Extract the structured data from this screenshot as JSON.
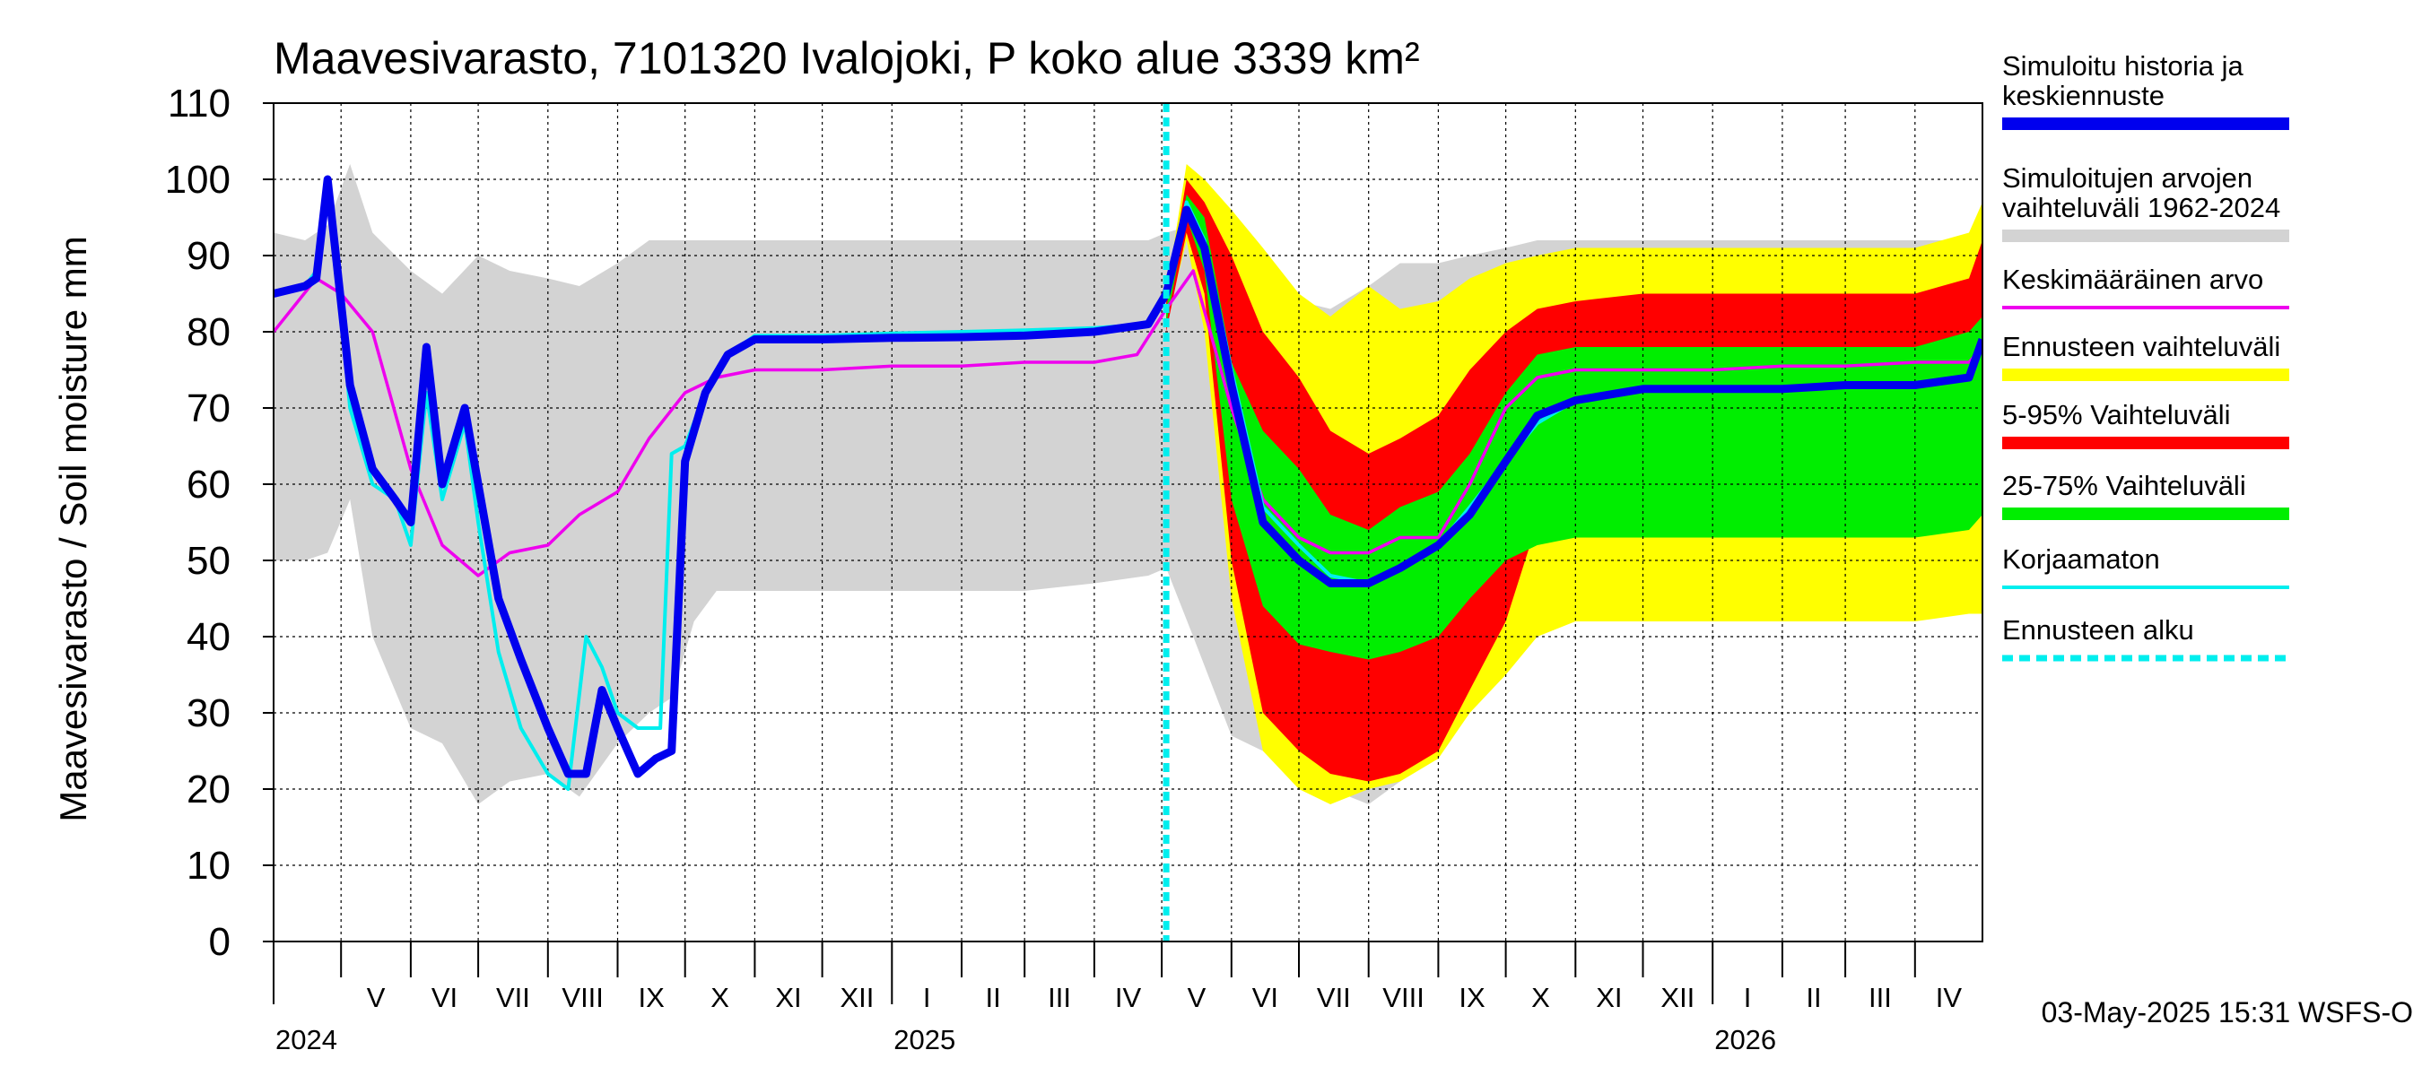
{
  "chart_data": {
    "type": "area",
    "title": "Maavesivarasto, 7101320 Ivalojoki, P koko alue 3339 km²",
    "ylabel": "Maavesivarasto / Soil moisture   mm",
    "ylim": [
      0,
      110
    ],
    "yticks": [
      0,
      10,
      20,
      30,
      40,
      50,
      60,
      70,
      80,
      90,
      100,
      110
    ],
    "xlim": [
      "2024-04-01",
      "2026-05-01"
    ],
    "grid": true,
    "legend_position": "right",
    "forecast_start": "2025-05-03",
    "month_labels": [
      {
        "label": "V",
        "date": "2024-05-01"
      },
      {
        "label": "VI",
        "date": "2024-06-01"
      },
      {
        "label": "VII",
        "date": "2024-07-01"
      },
      {
        "label": "VIII",
        "date": "2024-08-01"
      },
      {
        "label": "IX",
        "date": "2024-09-01"
      },
      {
        "label": "X",
        "date": "2024-10-01"
      },
      {
        "label": "XI",
        "date": "2024-11-01"
      },
      {
        "label": "XII",
        "date": "2024-12-01"
      },
      {
        "label": "I",
        "date": "2025-01-01"
      },
      {
        "label": "II",
        "date": "2025-02-01"
      },
      {
        "label": "III",
        "date": "2025-03-01"
      },
      {
        "label": "IV",
        "date": "2025-04-01"
      },
      {
        "label": "V",
        "date": "2025-05-01"
      },
      {
        "label": "VI",
        "date": "2025-06-01"
      },
      {
        "label": "VII",
        "date": "2025-07-01"
      },
      {
        "label": "VIII",
        "date": "2025-08-01"
      },
      {
        "label": "IX",
        "date": "2025-09-01"
      },
      {
        "label": "X",
        "date": "2025-10-01"
      },
      {
        "label": "XI",
        "date": "2025-11-01"
      },
      {
        "label": "XII",
        "date": "2025-12-01"
      },
      {
        "label": "I",
        "date": "2026-01-01"
      },
      {
        "label": "II",
        "date": "2026-02-01"
      },
      {
        "label": "III",
        "date": "2026-03-01"
      },
      {
        "label": "IV",
        "date": "2026-04-01"
      }
    ],
    "year_labels": [
      {
        "label": "2024",
        "date": "2024-04-01"
      },
      {
        "label": "2025",
        "date": "2025-01-01"
      },
      {
        "label": "2026",
        "date": "2026-01-01"
      }
    ],
    "timestamp": "03-May-2025 15:31 WSFS-O",
    "legend": [
      {
        "label": "Simuloitu historia ja keskiennuste",
        "color": "#0000ee"
      },
      {
        "label": "Simuloitujen arvojen vaihteluväli 1962-2024",
        "color": "#d3d3d3"
      },
      {
        "label": "Keskimääräinen arvo",
        "color": "#ee00ee"
      },
      {
        "label": "Ennusteen vaihteluväli",
        "color": "#ffff00"
      },
      {
        "label": "5-95% Vaihteluväli",
        "color": "#ff0000"
      },
      {
        "label": "25-75% Vaihteluväli",
        "color": "#00ee00"
      },
      {
        "label": "Korjaamaton",
        "color": "#00eeee"
      },
      {
        "label": "Ennusteen alku",
        "color": "#00eeee"
      }
    ],
    "series": [
      {
        "name": "Simuloitujen arvojen vaihteluväli 1962-2024",
        "color": "#d3d3d3",
        "kind": "band",
        "x": [
          "2024-04-01",
          "2024-04-15",
          "2024-04-25",
          "2024-05-05",
          "2024-05-15",
          "2024-06-01",
          "2024-06-15",
          "2024-07-01",
          "2024-07-15",
          "2024-08-01",
          "2024-08-15",
          "2024-09-01",
          "2024-09-15",
          "2024-09-25",
          "2024-10-05",
          "2024-10-15",
          "2024-11-01",
          "2024-12-01",
          "2025-01-01",
          "2025-02-01",
          "2025-03-01",
          "2025-04-01",
          "2025-04-25",
          "2025-05-03",
          "2025-05-15",
          "2025-06-01",
          "2025-06-15",
          "2025-07-01",
          "2025-07-15",
          "2025-08-01",
          "2025-08-15",
          "2025-09-01",
          "2025-09-15",
          "2025-10-01",
          "2025-10-15",
          "2025-11-01",
          "2025-12-01",
          "2026-01-01",
          "2026-02-01",
          "2026-03-01",
          "2026-04-01",
          "2026-05-01"
        ],
        "lower": [
          50,
          50,
          51,
          58,
          40,
          28,
          26,
          18,
          21,
          22,
          19,
          26,
          30,
          32,
          42,
          46,
          46,
          46,
          46,
          46,
          46,
          47,
          48,
          49,
          40,
          27,
          25,
          22,
          20,
          18,
          21,
          26,
          32,
          41,
          45,
          45,
          46,
          46,
          46,
          47,
          48,
          49
        ],
        "upper": [
          93,
          92,
          94,
          102,
          93,
          88,
          85,
          90,
          88,
          87,
          86,
          89,
          92,
          92,
          92,
          92,
          92,
          92,
          92,
          92,
          92,
          92,
          92,
          93,
          94,
          91,
          88,
          84,
          83,
          86,
          89,
          89,
          90,
          91,
          92,
          92,
          92,
          92,
          92,
          92,
          92,
          92
        ]
      },
      {
        "name": "Ennusteen vaihteluväli",
        "color": "#ffff00",
        "kind": "band",
        "x": [
          "2025-05-03",
          "2025-05-12",
          "2025-05-20",
          "2025-06-01",
          "2025-06-15",
          "2025-07-01",
          "2025-07-15",
          "2025-08-01",
          "2025-08-15",
          "2025-09-01",
          "2025-09-15",
          "2025-10-01",
          "2025-10-15",
          "2025-11-01",
          "2025-12-01",
          "2026-01-01",
          "2026-02-01",
          "2026-03-01",
          "2026-04-01",
          "2026-04-25",
          "2026-05-01"
        ],
        "lower": [
          81,
          92,
          80,
          45,
          25,
          20,
          18,
          20,
          21,
          24,
          30,
          35,
          40,
          42,
          42,
          42,
          42,
          42,
          42,
          43,
          43
        ],
        "upper": [
          85,
          102,
          100,
          96,
          91,
          85,
          82,
          86,
          83,
          84,
          87,
          89,
          90,
          91,
          91,
          91,
          91,
          91,
          91,
          93,
          97
        ]
      },
      {
        "name": "5-95% Vaihteluväli",
        "color": "#ff0000",
        "kind": "band",
        "x": [
          "2025-05-03",
          "2025-05-12",
          "2025-05-20",
          "2025-06-01",
          "2025-06-15",
          "2025-07-01",
          "2025-07-15",
          "2025-08-01",
          "2025-08-15",
          "2025-09-01",
          "2025-09-15",
          "2025-10-01",
          "2025-10-15",
          "2025-11-01",
          "2025-12-01",
          "2026-01-01",
          "2026-02-01",
          "2026-03-01",
          "2026-04-01",
          "2026-04-25",
          "2026-05-01"
        ],
        "lower": [
          80,
          93,
          85,
          50,
          30,
          25,
          22,
          21,
          22,
          25,
          33,
          42,
          55,
          59,
          60,
          60,
          60,
          61,
          61,
          62,
          64
        ],
        "upper": [
          84,
          100,
          97,
          90,
          80,
          74,
          67,
          64,
          66,
          69,
          75,
          80,
          83,
          84,
          85,
          85,
          85,
          85,
          85,
          87,
          92
        ]
      },
      {
        "name": "25-75% Vaihteluväli",
        "color": "#00ee00",
        "kind": "band",
        "x": [
          "2025-05-03",
          "2025-05-12",
          "2025-05-20",
          "2025-06-01",
          "2025-06-15",
          "2025-07-01",
          "2025-07-15",
          "2025-08-01",
          "2025-08-15",
          "2025-09-01",
          "2025-09-15",
          "2025-10-01",
          "2025-10-15",
          "2025-11-01",
          "2025-12-01",
          "2026-01-01",
          "2026-02-01",
          "2026-03-01",
          "2026-04-01",
          "2026-04-25",
          "2026-05-01"
        ],
        "lower": [
          81,
          95,
          88,
          58,
          44,
          39,
          38,
          37,
          38,
          40,
          45,
          50,
          52,
          53,
          53,
          53,
          53,
          53,
          53,
          54,
          56
        ],
        "upper": [
          83,
          98,
          95,
          76,
          67,
          62,
          56,
          54,
          57,
          59,
          64,
          72,
          77,
          78,
          78,
          78,
          78,
          78,
          78,
          80,
          82
        ]
      },
      {
        "name": "Keskimääräinen arvo",
        "color": "#ee00ee",
        "kind": "line",
        "x": [
          "2024-04-01",
          "2024-04-20",
          "2024-05-01",
          "2024-05-15",
          "2024-06-01",
          "2024-06-15",
          "2024-07-01",
          "2024-07-15",
          "2024-08-01",
          "2024-08-15",
          "2024-09-01",
          "2024-09-15",
          "2024-10-01",
          "2024-10-15",
          "2024-11-01",
          "2024-12-01",
          "2025-01-01",
          "2025-02-01",
          "2025-03-01",
          "2025-04-01",
          "2025-04-20",
          "2025-05-03",
          "2025-05-15",
          "2025-06-01",
          "2025-06-15",
          "2025-07-01",
          "2025-07-15",
          "2025-08-01",
          "2025-08-15",
          "2025-09-01",
          "2025-09-15",
          "2025-10-01",
          "2025-10-15",
          "2025-11-01",
          "2025-12-01",
          "2026-01-01",
          "2026-02-01",
          "2026-03-01",
          "2026-04-01",
          "2026-04-25",
          "2026-05-01"
        ],
        "y": [
          80,
          87,
          85,
          80,
          62,
          52,
          48,
          51,
          52,
          56,
          59,
          66,
          72,
          74,
          75,
          75,
          75.5,
          75.5,
          76,
          76,
          77,
          83,
          88,
          70,
          58,
          53,
          51,
          51,
          53,
          53,
          60,
          70,
          74,
          75,
          75,
          75,
          75.5,
          75.5,
          76,
          76,
          78
        ]
      },
      {
        "name": "Korjaamaton",
        "color": "#00eeee",
        "kind": "line",
        "x": [
          "2024-04-01",
          "2024-04-15",
          "2024-04-20",
          "2024-04-25",
          "2024-05-05",
          "2024-05-15",
          "2024-05-25",
          "2024-06-01",
          "2024-06-08",
          "2024-06-15",
          "2024-06-25",
          "2024-07-01",
          "2024-07-10",
          "2024-07-20",
          "2024-08-01",
          "2024-08-10",
          "2024-08-18",
          "2024-08-25",
          "2024-09-01",
          "2024-09-10",
          "2024-09-20",
          "2024-09-25",
          "2024-10-01",
          "2024-10-10",
          "2024-10-20",
          "2024-11-01",
          "2024-12-01",
          "2025-01-01",
          "2025-02-01",
          "2025-03-01",
          "2025-04-01",
          "2025-04-25",
          "2025-05-03",
          "2025-05-12",
          "2025-05-20",
          "2025-06-01",
          "2025-06-15",
          "2025-07-01",
          "2025-07-15",
          "2025-08-01",
          "2025-08-15",
          "2025-09-01",
          "2025-09-15",
          "2025-10-01",
          "2025-10-15",
          "2025-11-01",
          "2025-12-01",
          "2026-01-01",
          "2026-02-01",
          "2026-03-01",
          "2026-04-01",
          "2026-04-25",
          "2026-05-01"
        ],
        "y": [
          85,
          86,
          88,
          100,
          70,
          60,
          58,
          52,
          72,
          58,
          68,
          55,
          38,
          28,
          22,
          20,
          40,
          36,
          30,
          28,
          28,
          64,
          65,
          72,
          77,
          79.5,
          79.5,
          79.8,
          80,
          80.2,
          80.5,
          81,
          85,
          97,
          92,
          75,
          57,
          52,
          48,
          47,
          49,
          52,
          57,
          63,
          68,
          71,
          72.5,
          72.5,
          72.5,
          73,
          73,
          74,
          79
        ]
      },
      {
        "name": "Simuloitu historia ja keskiennuste",
        "color": "#0000ee",
        "kind": "line",
        "x": [
          "2024-04-01",
          "2024-04-15",
          "2024-04-20",
          "2024-04-25",
          "2024-05-05",
          "2024-05-15",
          "2024-05-25",
          "2024-06-01",
          "2024-06-08",
          "2024-06-15",
          "2024-06-25",
          "2024-07-01",
          "2024-07-10",
          "2024-07-20",
          "2024-08-01",
          "2024-08-10",
          "2024-08-18",
          "2024-08-25",
          "2024-09-01",
          "2024-09-10",
          "2024-09-18",
          "2024-09-25",
          "2024-10-01",
          "2024-10-10",
          "2024-10-20",
          "2024-11-01",
          "2024-12-01",
          "2025-01-01",
          "2025-02-01",
          "2025-03-01",
          "2025-04-01",
          "2025-04-25",
          "2025-05-03",
          "2025-05-12",
          "2025-05-20",
          "2025-06-01",
          "2025-06-15",
          "2025-07-01",
          "2025-07-15",
          "2025-08-01",
          "2025-08-15",
          "2025-09-01",
          "2025-09-15",
          "2025-10-01",
          "2025-10-15",
          "2025-11-01",
          "2025-12-01",
          "2026-01-01",
          "2026-02-01",
          "2026-03-01",
          "2026-04-01",
          "2026-04-25",
          "2026-05-01"
        ],
        "y": [
          85,
          86,
          87,
          100,
          73,
          62,
          58,
          55,
          78,
          60,
          70,
          60,
          45,
          37,
          28,
          22,
          22,
          33,
          28,
          22,
          24,
          25,
          63,
          72,
          77,
          79,
          79,
          79.2,
          79.3,
          79.5,
          80,
          81,
          85,
          96,
          91,
          73,
          55,
          50,
          47,
          47,
          49,
          52,
          56,
          63,
          69,
          71,
          72.5,
          72.5,
          72.5,
          73,
          73,
          74,
          79
        ]
      }
    ]
  }
}
